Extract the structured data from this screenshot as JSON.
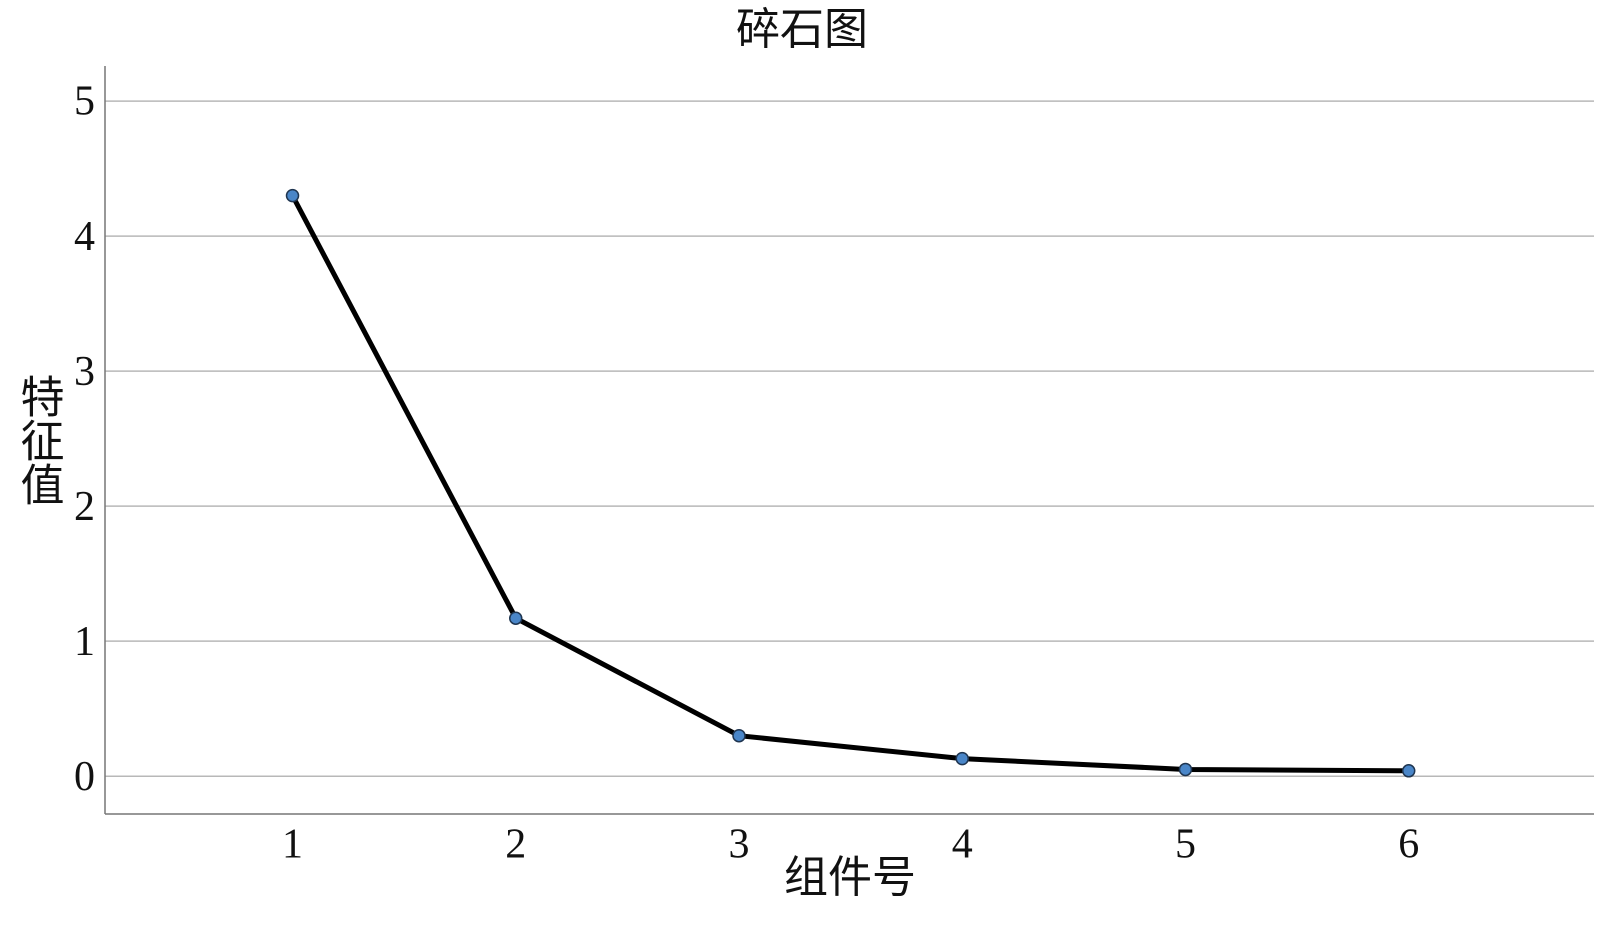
{
  "chart_data": {
    "type": "line",
    "title": "碎石图",
    "x_label": "组件号",
    "y_label": "特征值",
    "x": [
      1,
      2,
      3,
      4,
      5,
      6
    ],
    "series": [
      {
        "color": "#000000",
        "marker_color": "#4a86c8",
        "values": [
          4.3,
          1.17,
          0.3,
          0.13,
          0.05,
          0.04
        ]
      }
    ],
    "xlim": [
      0.16,
      6.83
    ],
    "xticks": [
      1,
      2,
      3,
      4,
      5,
      6
    ],
    "ylim": [
      -0.28,
      5.26
    ],
    "yticks": [
      0,
      1,
      2,
      3,
      4,
      5
    ],
    "grid": true
  }
}
